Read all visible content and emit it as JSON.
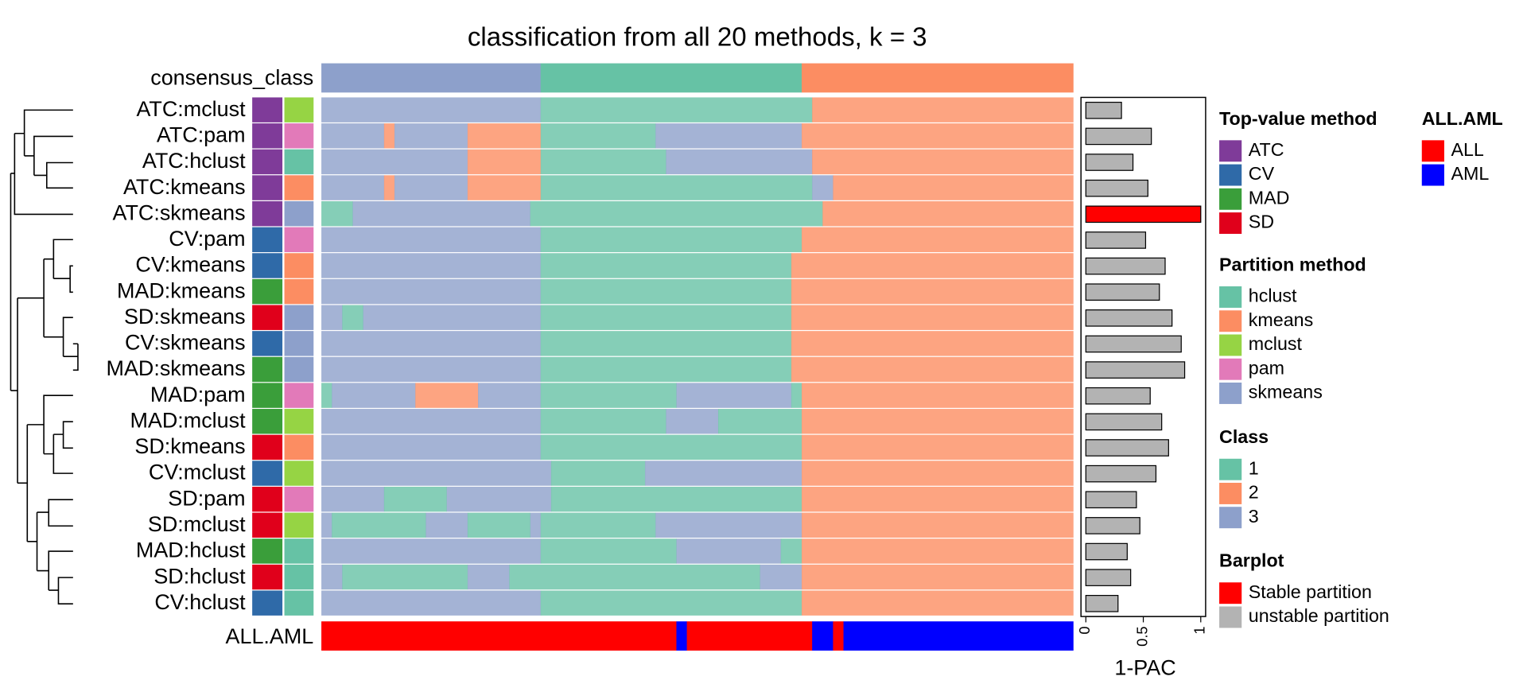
{
  "chart_data": {
    "type": "heatmap",
    "title": "classification from all 20 methods, k = 3",
    "consensus_label": "consensus_class",
    "consensus": [
      {
        "class": 3,
        "n": 21
      },
      {
        "class": 1,
        "n": 25
      },
      {
        "class": 2,
        "n": 26
      }
    ],
    "annotation_label": "ALL.AML",
    "annotation": [
      {
        "label": "ALL",
        "n": 34
      },
      {
        "label": "AML",
        "n": 1
      },
      {
        "label": "ALL",
        "n": 12
      },
      {
        "label": "AML",
        "n": 2
      },
      {
        "label": "ALL",
        "n": 1
      },
      {
        "label": "AML",
        "n": 22
      }
    ],
    "rows": [
      {
        "label": "ATC:mclust",
        "top_color": "#7f3b99",
        "partition_color": "#96d444",
        "pac": 0.31,
        "bar_color": "#b3b3b3",
        "segments": [
          {
            "class": 3,
            "n": 21
          },
          {
            "class": 1,
            "n": 26
          },
          {
            "class": 2,
            "n": 25
          }
        ]
      },
      {
        "label": "ATC:pam",
        "top_color": "#7f3b99",
        "partition_color": "#e27ab9",
        "pac": 0.57,
        "bar_color": "#b3b3b3",
        "segments": [
          {
            "class": 3,
            "n": 6
          },
          {
            "class": 2,
            "n": 1
          },
          {
            "class": 3,
            "n": 7
          },
          {
            "class": 2,
            "n": 7
          },
          {
            "class": 1,
            "n": 11
          },
          {
            "class": 3,
            "n": 14
          },
          {
            "class": 2,
            "n": 26
          }
        ]
      },
      {
        "label": "ATC:hclust",
        "top_color": "#7f3b99",
        "partition_color": "#66c2a5",
        "pac": 0.41,
        "bar_color": "#b3b3b3",
        "segments": [
          {
            "class": 3,
            "n": 14
          },
          {
            "class": 2,
            "n": 7
          },
          {
            "class": 1,
            "n": 12
          },
          {
            "class": 3,
            "n": 14
          },
          {
            "class": 2,
            "n": 25
          }
        ]
      },
      {
        "label": "ATC:kmeans",
        "top_color": "#7f3b99",
        "partition_color": "#fc8d62",
        "pac": 0.54,
        "bar_color": "#b3b3b3",
        "segments": [
          {
            "class": 3,
            "n": 6
          },
          {
            "class": 2,
            "n": 1
          },
          {
            "class": 3,
            "n": 7
          },
          {
            "class": 2,
            "n": 7
          },
          {
            "class": 1,
            "n": 26
          },
          {
            "class": 3,
            "n": 2
          },
          {
            "class": 2,
            "n": 23
          }
        ]
      },
      {
        "label": "ATC:skmeans",
        "top_color": "#7f3b99",
        "partition_color": "#8da0cb",
        "pac": 1,
        "bar_color": "#ff0000",
        "segments": [
          {
            "class": 1,
            "n": 3
          },
          {
            "class": 3,
            "n": 17
          },
          {
            "class": 1,
            "n": 28
          },
          {
            "class": 2,
            "n": 24
          }
        ]
      },
      {
        "label": "CV:pam",
        "top_color": "#2f6aa8",
        "partition_color": "#e27ab9",
        "pac": 0.52,
        "bar_color": "#b3b3b3",
        "segments": [
          {
            "class": 3,
            "n": 21
          },
          {
            "class": 1,
            "n": 25
          },
          {
            "class": 2,
            "n": 26
          }
        ]
      },
      {
        "label": "CV:kmeans",
        "top_color": "#2f6aa8",
        "partition_color": "#fc8d62",
        "pac": 0.69,
        "bar_color": "#b3b3b3",
        "segments": [
          {
            "class": 3,
            "n": 21
          },
          {
            "class": 1,
            "n": 24
          },
          {
            "class": 2,
            "n": 27
          }
        ]
      },
      {
        "label": "MAD:kmeans",
        "top_color": "#3a9e3a",
        "partition_color": "#fc8d62",
        "pac": 0.64,
        "bar_color": "#b3b3b3",
        "segments": [
          {
            "class": 3,
            "n": 21
          },
          {
            "class": 1,
            "n": 24
          },
          {
            "class": 2,
            "n": 27
          }
        ]
      },
      {
        "label": "SD:skmeans",
        "top_color": "#e0001b",
        "partition_color": "#8da0cb",
        "pac": 0.75,
        "bar_color": "#b3b3b3",
        "segments": [
          {
            "class": 3,
            "n": 2
          },
          {
            "class": 1,
            "n": 2
          },
          {
            "class": 3,
            "n": 17
          },
          {
            "class": 1,
            "n": 24
          },
          {
            "class": 2,
            "n": 27
          }
        ]
      },
      {
        "label": "CV:skmeans",
        "top_color": "#2f6aa8",
        "partition_color": "#8da0cb",
        "pac": 0.83,
        "bar_color": "#b3b3b3",
        "segments": [
          {
            "class": 3,
            "n": 21
          },
          {
            "class": 1,
            "n": 24
          },
          {
            "class": 2,
            "n": 27
          }
        ]
      },
      {
        "label": "MAD:skmeans",
        "top_color": "#3a9e3a",
        "partition_color": "#8da0cb",
        "pac": 0.86,
        "bar_color": "#b3b3b3",
        "segments": [
          {
            "class": 3,
            "n": 21
          },
          {
            "class": 1,
            "n": 24
          },
          {
            "class": 2,
            "n": 27
          }
        ]
      },
      {
        "label": "MAD:pam",
        "top_color": "#3a9e3a",
        "partition_color": "#e27ab9",
        "pac": 0.56,
        "bar_color": "#b3b3b3",
        "segments": [
          {
            "class": 1,
            "n": 1
          },
          {
            "class": 3,
            "n": 8
          },
          {
            "class": 2,
            "n": 6
          },
          {
            "class": 3,
            "n": 6
          },
          {
            "class": 1,
            "n": 13
          },
          {
            "class": 3,
            "n": 11
          },
          {
            "class": 1,
            "n": 1
          },
          {
            "class": 2,
            "n": 26
          }
        ]
      },
      {
        "label": "MAD:mclust",
        "top_color": "#3a9e3a",
        "partition_color": "#96d444",
        "pac": 0.66,
        "bar_color": "#b3b3b3",
        "segments": [
          {
            "class": 3,
            "n": 21
          },
          {
            "class": 1,
            "n": 12
          },
          {
            "class": 3,
            "n": 5
          },
          {
            "class": 1,
            "n": 8
          },
          {
            "class": 2,
            "n": 26
          }
        ]
      },
      {
        "label": "SD:kmeans",
        "top_color": "#e0001b",
        "partition_color": "#fc8d62",
        "pac": 0.72,
        "bar_color": "#b3b3b3",
        "segments": [
          {
            "class": 3,
            "n": 21
          },
          {
            "class": 1,
            "n": 25
          },
          {
            "class": 2,
            "n": 26
          }
        ]
      },
      {
        "label": "CV:mclust",
        "top_color": "#2f6aa8",
        "partition_color": "#96d444",
        "pac": 0.61,
        "bar_color": "#b3b3b3",
        "segments": [
          {
            "class": 3,
            "n": 22
          },
          {
            "class": 1,
            "n": 9
          },
          {
            "class": 3,
            "n": 15
          },
          {
            "class": 2,
            "n": 26
          }
        ]
      },
      {
        "label": "SD:pam",
        "top_color": "#e0001b",
        "partition_color": "#e27ab9",
        "pac": 0.44,
        "bar_color": "#b3b3b3",
        "segments": [
          {
            "class": 3,
            "n": 6
          },
          {
            "class": 1,
            "n": 6
          },
          {
            "class": 3,
            "n": 10
          },
          {
            "class": 1,
            "n": 24
          },
          {
            "class": 2,
            "n": 26
          }
        ]
      },
      {
        "label": "SD:mclust",
        "top_color": "#e0001b",
        "partition_color": "#96d444",
        "pac": 0.47,
        "bar_color": "#b3b3b3",
        "segments": [
          {
            "class": 3,
            "n": 1
          },
          {
            "class": 1,
            "n": 9
          },
          {
            "class": 3,
            "n": 4
          },
          {
            "class": 1,
            "n": 6
          },
          {
            "class": 3,
            "n": 1
          },
          {
            "class": 1,
            "n": 11
          },
          {
            "class": 3,
            "n": 14
          },
          {
            "class": 2,
            "n": 26
          }
        ]
      },
      {
        "label": "MAD:hclust",
        "top_color": "#3a9e3a",
        "partition_color": "#66c2a5",
        "pac": 0.36,
        "bar_color": "#b3b3b3",
        "segments": [
          {
            "class": 3,
            "n": 21
          },
          {
            "class": 1,
            "n": 13
          },
          {
            "class": 3,
            "n": 10
          },
          {
            "class": 1,
            "n": 2
          },
          {
            "class": 2,
            "n": 26
          }
        ]
      },
      {
        "label": "SD:hclust",
        "top_color": "#e0001b",
        "partition_color": "#66c2a5",
        "pac": 0.39,
        "bar_color": "#b3b3b3",
        "segments": [
          {
            "class": 3,
            "n": 2
          },
          {
            "class": 1,
            "n": 12
          },
          {
            "class": 3,
            "n": 4
          },
          {
            "class": 1,
            "n": 24
          },
          {
            "class": 3,
            "n": 4
          },
          {
            "class": 2,
            "n": 26
          }
        ]
      },
      {
        "label": "CV:hclust",
        "top_color": "#2f6aa8",
        "partition_color": "#66c2a5",
        "pac": 0.28,
        "bar_color": "#b3b3b3",
        "segments": [
          {
            "class": 3,
            "n": 21
          },
          {
            "class": 1,
            "n": 25
          },
          {
            "class": 2,
            "n": 26
          }
        ]
      }
    ],
    "xlabel": "1-PAC",
    "xlim": [
      0,
      1
    ],
    "xticks": [
      0,
      0.5,
      1
    ],
    "legends": [
      {
        "title": "Top-value method",
        "items": [
          {
            "label": "ATC",
            "color": "#7f3b99"
          },
          {
            "label": "CV",
            "color": "#2f6aa8"
          },
          {
            "label": "MAD",
            "color": "#3a9e3a"
          },
          {
            "label": "SD",
            "color": "#e0001b"
          }
        ]
      },
      {
        "title": "Partition method",
        "items": [
          {
            "label": "hclust",
            "color": "#66c2a5"
          },
          {
            "label": "kmeans",
            "color": "#fc8d62"
          },
          {
            "label": "mclust",
            "color": "#96d444"
          },
          {
            "label": "pam",
            "color": "#e27ab9"
          },
          {
            "label": "skmeans",
            "color": "#8da0cb"
          }
        ]
      },
      {
        "title": "Class",
        "items": [
          {
            "label": "1",
            "color": "#66c2a5"
          },
          {
            "label": "2",
            "color": "#fc8d62"
          },
          {
            "label": "3",
            "color": "#8da0cb"
          }
        ]
      },
      {
        "title": "Barplot",
        "items": [
          {
            "label": "Stable partition",
            "color": "#ff0000"
          },
          {
            "label": "unstable partition",
            "color": "#b3b3b3"
          }
        ]
      },
      {
        "title": "ALL.AML",
        "items": [
          {
            "label": "ALL",
            "color": "#ff0000"
          },
          {
            "label": "AML",
            "color": "#0000ff"
          }
        ]
      }
    ]
  }
}
